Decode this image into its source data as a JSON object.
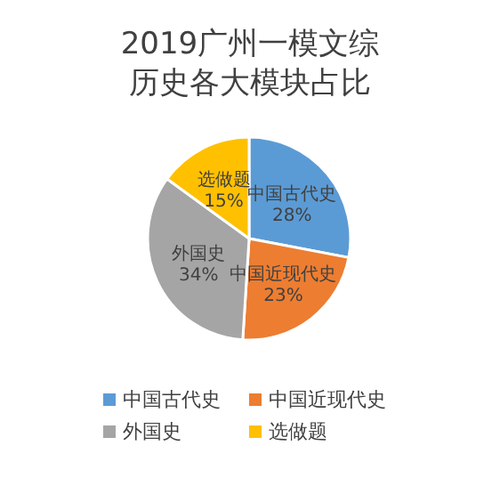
{
  "chart_data": {
    "type": "pie",
    "title": "2019广州一模文综历史各大模块占比",
    "categories": [
      "中国古代史",
      "中国近现代史",
      "外国史",
      "选做题"
    ],
    "values": [
      28,
      23,
      34,
      15
    ],
    "colors": [
      "#5b9bd5",
      "#ed7d31",
      "#a5a5a5",
      "#ffc000"
    ],
    "value_labels": [
      "28%",
      "23%",
      "34%",
      "15%"
    ],
    "legend": "bottom"
  }
}
